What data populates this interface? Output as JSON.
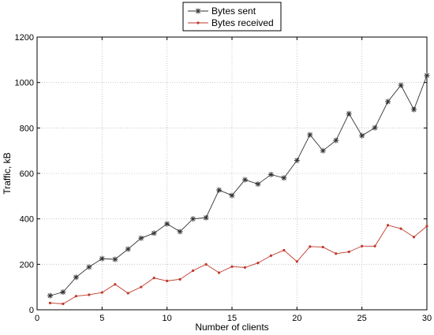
{
  "chart_data": {
    "type": "line",
    "xlabel": "Number of clients",
    "ylabel": "Traffic, kB",
    "xlim": [
      0,
      30
    ],
    "ylim": [
      0,
      1200
    ],
    "xticks": [
      0,
      5,
      10,
      15,
      20,
      25,
      30
    ],
    "yticks": [
      0,
      200,
      400,
      600,
      800,
      1000,
      1200
    ],
    "grid": true,
    "legend_position": "top-center",
    "x": [
      1,
      2,
      3,
      4,
      5,
      6,
      7,
      8,
      9,
      10,
      11,
      12,
      13,
      14,
      15,
      16,
      17,
      18,
      19,
      20,
      21,
      22,
      23,
      24,
      25,
      26,
      27,
      28,
      29,
      30
    ],
    "series": [
      {
        "name": "Bytes sent",
        "color": "#333333",
        "marker": "asterisk",
        "values": [
          62,
          78,
          143,
          188,
          225,
          222,
          267,
          315,
          337,
          378,
          344,
          400,
          405,
          527,
          503,
          572,
          553,
          595,
          580,
          657,
          770,
          700,
          745,
          863,
          766,
          801,
          916,
          988,
          881,
          1031
        ]
      },
      {
        "name": "Bytes received",
        "color": "#c0392b",
        "marker": "dot",
        "values": [
          30,
          26,
          60,
          66,
          76,
          112,
          73,
          100,
          140,
          127,
          134,
          172,
          200,
          163,
          190,
          186,
          206,
          238,
          262,
          212,
          278,
          276,
          247,
          255,
          280,
          280,
          372,
          357,
          320,
          368
        ]
      }
    ]
  }
}
